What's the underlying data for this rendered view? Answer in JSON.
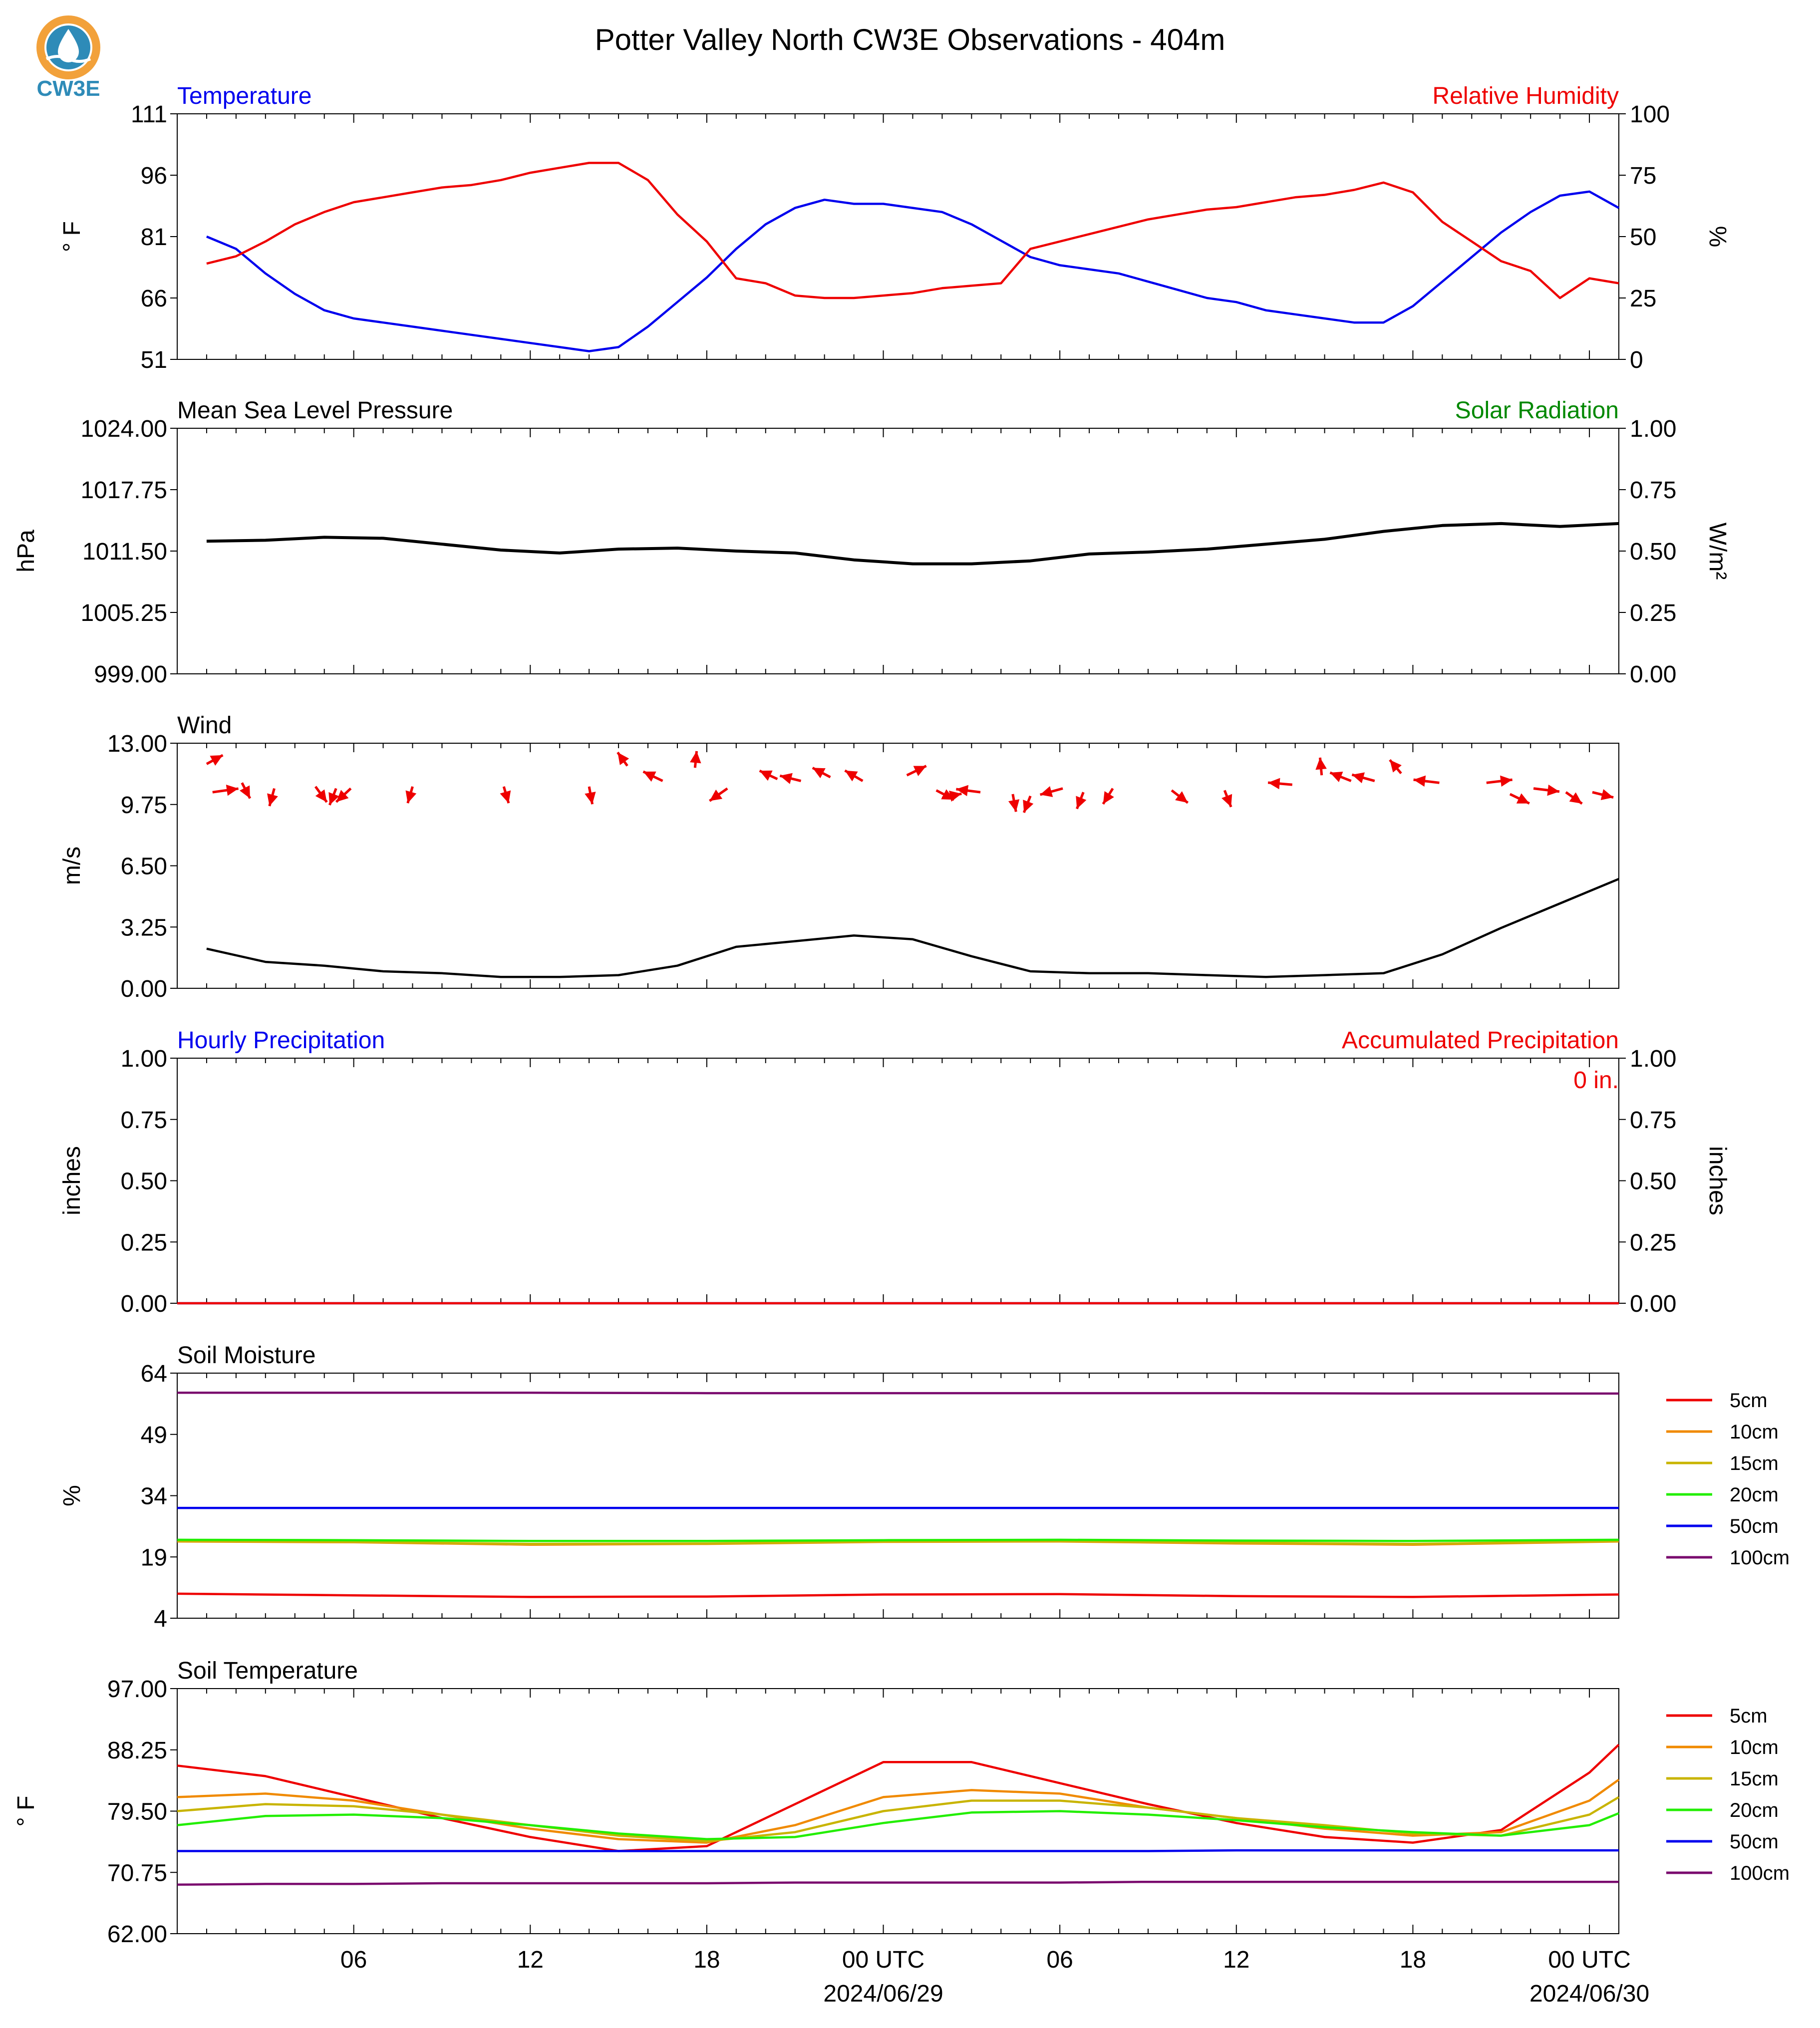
{
  "figure": {
    "title": "Potter Valley North CW3E Observations - 404m",
    "logo_text": "CW3E",
    "colors": {
      "blue": "#0000ee",
      "red": "#ee0000",
      "green": "#008800",
      "black": "#000000",
      "logo": "#2e8bb8",
      "logo_orange": "#f2a13a"
    }
  },
  "time_axis": {
    "tick_labels": [
      "06",
      "12",
      "18",
      "00 UTC",
      "06",
      "12",
      "18",
      "00 UTC"
    ],
    "date_labels": [
      "2024/06/29",
      "2024/06/30"
    ]
  },
  "chart_data": [
    {
      "type": "line",
      "name": "temperature_rh",
      "left_title": "Temperature",
      "right_title": "Relative Humidity",
      "ylabel": "° F",
      "ylabel_right": "%",
      "ylim": [
        51,
        111
      ],
      "yticks": [
        "51",
        "66",
        "81",
        "96",
        "111"
      ],
      "ylim_right": [
        0,
        100
      ],
      "yticks_right": [
        "0",
        "25",
        "50",
        "75",
        "100"
      ],
      "x_hours": [
        1,
        2,
        3,
        4,
        5,
        6,
        7,
        8,
        9,
        10,
        11,
        12,
        13,
        14,
        15,
        16,
        17,
        18,
        19,
        20,
        21,
        22,
        23,
        24,
        25,
        26,
        27,
        28,
        29,
        30,
        31,
        32,
        33,
        34,
        35,
        36,
        37,
        38,
        39,
        40,
        41,
        42,
        43,
        44,
        45,
        46,
        47,
        48,
        49
      ],
      "series": [
        {
          "name": "Temperature",
          "axis": "left",
          "color": "#0000ee",
          "values": [
            81,
            78,
            72,
            67,
            63,
            61,
            60,
            59,
            58,
            57,
            56,
            55,
            54,
            53,
            54,
            59,
            65,
            71,
            78,
            84,
            88,
            90,
            89,
            89,
            88,
            87,
            84,
            80,
            76,
            74,
            73,
            72,
            70,
            68,
            66,
            65,
            63,
            62,
            61,
            60,
            60,
            64,
            70,
            76,
            82,
            87,
            91,
            92,
            88
          ]
        },
        {
          "name": "Relative Humidity",
          "axis": "right",
          "color": "#ee0000",
          "values": [
            39,
            42,
            48,
            55,
            60,
            64,
            66,
            68,
            70,
            71,
            73,
            76,
            78,
            80,
            80,
            73,
            59,
            48,
            33,
            31,
            26,
            25,
            25,
            26,
            27,
            29,
            30,
            31,
            45,
            48,
            51,
            54,
            57,
            59,
            61,
            62,
            64,
            66,
            67,
            69,
            72,
            68,
            56,
            48,
            40,
            36,
            25,
            33,
            31
          ]
        }
      ]
    },
    {
      "type": "line",
      "name": "pressure",
      "left_title": "Mean Sea Level Pressure",
      "right_title": "Solar Radiation",
      "ylabel": "hPa",
      "ylabel_right": "W/m²",
      "ylim": [
        999.0,
        1024.0
      ],
      "yticks": [
        "999.00",
        "1005.25",
        "1011.50",
        "1017.75",
        "1024.00"
      ],
      "ylim_right": [
        0,
        1
      ],
      "yticks_right": [
        "0.00",
        "0.25",
        "0.50",
        "0.75",
        "1.00"
      ],
      "x_hours": [
        1,
        3,
        5,
        7,
        9,
        11,
        13,
        15,
        17,
        19,
        21,
        23,
        25,
        27,
        29,
        31,
        33,
        35,
        37,
        39,
        41,
        43,
        45,
        47,
        49
      ],
      "series": [
        {
          "name": "Mean Sea Level Pressure",
          "axis": "left",
          "color": "#000000",
          "values": [
            1012.5,
            1012.6,
            1012.9,
            1012.8,
            1012.2,
            1011.6,
            1011.3,
            1011.7,
            1011.8,
            1011.5,
            1011.3,
            1010.6,
            1010.2,
            1010.2,
            1010.5,
            1011.2,
            1011.4,
            1011.7,
            1012.2,
            1012.7,
            1013.5,
            1014.1,
            1014.3,
            1014.0,
            1014.3
          ]
        }
      ]
    },
    {
      "type": "line",
      "name": "wind",
      "left_title": "Wind",
      "ylabel": "m/s",
      "ylim": [
        0,
        13
      ],
      "yticks": [
        "0.00",
        "3.25",
        "6.50",
        "9.75",
        "13.00"
      ],
      "x_hours": [
        1,
        3,
        5,
        7,
        9,
        11,
        13,
        15,
        17,
        19,
        21,
        23,
        25,
        27,
        29,
        31,
        33,
        35,
        37,
        39,
        41,
        43,
        45,
        47,
        49
      ],
      "series": [
        {
          "name": "Wind Speed",
          "axis": "left",
          "color": "#000000",
          "values": [
            2.1,
            1.4,
            1.2,
            0.9,
            0.8,
            0.6,
            0.6,
            0.7,
            1.2,
            2.2,
            2.5,
            2.8,
            2.6,
            1.7,
            0.9,
            0.8,
            0.8,
            0.7,
            0.6,
            0.7,
            0.8,
            1.8,
            3.2,
            4.5,
            5.8
          ]
        }
      ],
      "arrows": [
        {
          "x": 1.0,
          "y": 11.9,
          "dx": 1.0,
          "dy": 0.85
        },
        {
          "x": 1.2,
          "y": 10.4,
          "dx": 1.6,
          "dy": 0.35
        },
        {
          "x": 2.2,
          "y": 10.9,
          "dx": 0.5,
          "dy": -1.5
        },
        {
          "x": 3.3,
          "y": 10.6,
          "dx": -0.3,
          "dy": -1.7
        },
        {
          "x": 4.7,
          "y": 10.7,
          "dx": 0.7,
          "dy": -1.5
        },
        {
          "x": 5.4,
          "y": 10.6,
          "dx": -0.4,
          "dy": -1.6
        },
        {
          "x": 5.9,
          "y": 10.6,
          "dx": -0.9,
          "dy": -1.3
        },
        {
          "x": 8.0,
          "y": 10.7,
          "dx": -0.3,
          "dy": -1.6
        },
        {
          "x": 11.1,
          "y": 10.7,
          "dx": 0.3,
          "dy": -1.6
        },
        {
          "x": 14.0,
          "y": 10.7,
          "dx": 0.2,
          "dy": -1.7
        },
        {
          "x": 15.3,
          "y": 11.8,
          "dx": -0.6,
          "dy": 1.3
        },
        {
          "x": 16.5,
          "y": 11.0,
          "dx": -1.2,
          "dy": 0.9
        },
        {
          "x": 17.6,
          "y": 11.7,
          "dx": 0.1,
          "dy": 1.6
        },
        {
          "x": 18.7,
          "y": 10.6,
          "dx": -1.1,
          "dy": -1.2
        },
        {
          "x": 20.4,
          "y": 11.1,
          "dx": -1.1,
          "dy": 0.8
        },
        {
          "x": 21.2,
          "y": 11.0,
          "dx": -1.3,
          "dy": 0.5
        },
        {
          "x": 22.2,
          "y": 11.2,
          "dx": -1.1,
          "dy": 0.9
        },
        {
          "x": 23.3,
          "y": 11.0,
          "dx": -1.1,
          "dy": 1.0
        },
        {
          "x": 24.8,
          "y": 11.3,
          "dx": 1.2,
          "dy": 0.9
        },
        {
          "x": 25.8,
          "y": 10.5,
          "dx": 1.1,
          "dy": -0.9
        },
        {
          "x": 26.0,
          "y": 10.1,
          "dx": 1.2,
          "dy": 0.4
        },
        {
          "x": 27.3,
          "y": 10.4,
          "dx": -1.5,
          "dy": 0.3
        },
        {
          "x": 28.4,
          "y": 10.3,
          "dx": 0.2,
          "dy": -1.7
        },
        {
          "x": 29.0,
          "y": 10.2,
          "dx": -0.4,
          "dy": -1.6
        },
        {
          "x": 30.1,
          "y": 10.6,
          "dx": -1.4,
          "dy": -0.6
        },
        {
          "x": 30.8,
          "y": 10.4,
          "dx": -0.4,
          "dy": -1.6
        },
        {
          "x": 31.8,
          "y": 10.6,
          "dx": -0.6,
          "dy": -1.5
        },
        {
          "x": 33.8,
          "y": 10.5,
          "dx": 1.0,
          "dy": -1.2
        },
        {
          "x": 35.6,
          "y": 10.5,
          "dx": 0.4,
          "dy": -1.6
        },
        {
          "x": 37.9,
          "y": 10.8,
          "dx": -1.5,
          "dy": 0.2
        },
        {
          "x": 38.9,
          "y": 11.3,
          "dx": -0.1,
          "dy": 1.7
        },
        {
          "x": 39.9,
          "y": 11.0,
          "dx": -1.3,
          "dy": 0.8
        },
        {
          "x": 40.7,
          "y": 11.0,
          "dx": -1.4,
          "dy": 0.6
        },
        {
          "x": 41.6,
          "y": 11.4,
          "dx": -0.7,
          "dy": 1.3
        },
        {
          "x": 42.9,
          "y": 10.9,
          "dx": -1.6,
          "dy": 0.3
        },
        {
          "x": 44.5,
          "y": 10.9,
          "dx": 1.6,
          "dy": 0.3
        },
        {
          "x": 45.3,
          "y": 10.3,
          "dx": 1.2,
          "dy": -0.9
        },
        {
          "x": 46.1,
          "y": 10.6,
          "dx": 1.6,
          "dy": -0.3
        },
        {
          "x": 47.2,
          "y": 10.4,
          "dx": 1.0,
          "dy": -1.1
        },
        {
          "x": 48.1,
          "y": 10.4,
          "dx": 1.3,
          "dy": -0.5
        }
      ]
    },
    {
      "type": "line",
      "name": "precip",
      "left_title": "Hourly Precipitation",
      "right_title": "Accumulated Precipitation",
      "annotation": "0 in.",
      "ylabel": "inches",
      "ylabel_right": "inches",
      "ylim": [
        0,
        1
      ],
      "yticks": [
        "0.00",
        "0.25",
        "0.50",
        "0.75",
        "1.00"
      ],
      "ylim_right": [
        0,
        1
      ],
      "yticks_right": [
        "0.00",
        "0.25",
        "0.50",
        "0.75",
        "1.00"
      ],
      "x_hours": [
        0,
        49
      ],
      "series": [
        {
          "name": "Hourly Precipitation",
          "axis": "left",
          "color": "#0000ee",
          "values": [
            0,
            0
          ]
        },
        {
          "name": "Accumulated Precipitation",
          "axis": "right",
          "color": "#ee0000",
          "values": [
            0,
            0
          ]
        }
      ]
    },
    {
      "type": "line",
      "name": "soil_moisture",
      "left_title": "Soil Moisture",
      "ylabel": "%",
      "ylim": [
        4,
        64
      ],
      "yticks": [
        "4",
        "19",
        "34",
        "49",
        "64"
      ],
      "x_hours": [
        0,
        6,
        12,
        18,
        24,
        30,
        36,
        42,
        49
      ],
      "legend": [
        "5cm",
        "10cm",
        "15cm",
        "20cm",
        "50cm",
        "100cm"
      ],
      "series": [
        {
          "name": "5cm",
          "color": "#ee0000",
          "values": [
            10.0,
            9.6,
            9.2,
            9.3,
            9.8,
            9.9,
            9.4,
            9.2,
            9.8
          ]
        },
        {
          "name": "10cm",
          "color": "#f08a00",
          "values": [
            22.8,
            22.6,
            22.0,
            22.2,
            22.7,
            22.8,
            22.3,
            22.0,
            22.8
          ]
        },
        {
          "name": "15cm",
          "color": "#c8b400",
          "values": [
            22.9,
            22.7,
            22.2,
            22.3,
            22.8,
            22.9,
            22.5,
            22.2,
            22.9
          ]
        },
        {
          "name": "20cm",
          "color": "#22ee00",
          "values": [
            23.2,
            23.1,
            22.9,
            22.9,
            23.1,
            23.2,
            23.0,
            22.9,
            23.2
          ]
        },
        {
          "name": "50cm",
          "color": "#0000ee",
          "values": [
            31.0,
            31.0,
            31.0,
            31.0,
            31.0,
            31.0,
            31.0,
            31.0,
            31.0
          ]
        },
        {
          "name": "100cm",
          "color": "#7a0a6e",
          "values": [
            59.2,
            59.2,
            59.2,
            59.1,
            59.1,
            59.1,
            59.1,
            59.0,
            59.0
          ]
        }
      ]
    },
    {
      "type": "line",
      "name": "soil_temperature",
      "left_title": "Soil Temperature",
      "ylabel": "° F",
      "ylim": [
        62,
        97
      ],
      "yticks": [
        "62.00",
        "70.75",
        "79.50",
        "88.25",
        "97.00"
      ],
      "x_hours": [
        0,
        3,
        6,
        9,
        12,
        15,
        18,
        21,
        24,
        27,
        30,
        33,
        36,
        39,
        42,
        45,
        48,
        49
      ],
      "legend": [
        "5cm",
        "10cm",
        "15cm",
        "20cm",
        "50cm",
        "100cm"
      ],
      "series": [
        {
          "name": "5cm",
          "color": "#ee0000",
          "values": [
            86.0,
            84.5,
            81.5,
            78.5,
            75.8,
            73.8,
            74.5,
            80.5,
            86.5,
            86.5,
            83.5,
            80.5,
            77.8,
            75.8,
            75.0,
            76.8,
            85.0,
            89.0
          ]
        },
        {
          "name": "10cm",
          "color": "#f08a00",
          "values": [
            81.5,
            82.0,
            81.0,
            79.0,
            77.0,
            75.5,
            75.0,
            77.5,
            81.5,
            82.5,
            82.0,
            80.0,
            78.5,
            77.0,
            76.0,
            76.5,
            81.0,
            84.0
          ]
        },
        {
          "name": "15cm",
          "color": "#c8b400",
          "values": [
            79.5,
            80.5,
            80.2,
            79.0,
            77.5,
            76.0,
            75.2,
            76.5,
            79.5,
            81.0,
            81.0,
            80.0,
            78.5,
            77.5,
            76.3,
            76.0,
            79.0,
            81.5
          ]
        },
        {
          "name": "20cm",
          "color": "#22ee00",
          "values": [
            77.5,
            78.8,
            79.0,
            78.5,
            77.5,
            76.3,
            75.5,
            75.8,
            77.8,
            79.3,
            79.5,
            79.0,
            78.2,
            77.2,
            76.5,
            76.0,
            77.5,
            79.2
          ]
        },
        {
          "name": "50cm",
          "color": "#0000ee",
          "values": [
            73.8,
            73.8,
            73.8,
            73.8,
            73.8,
            73.8,
            73.8,
            73.8,
            73.8,
            73.8,
            73.8,
            73.8,
            73.9,
            73.9,
            73.9,
            73.9,
            73.9,
            73.9
          ]
        },
        {
          "name": "100cm",
          "color": "#7a0a6e",
          "values": [
            69.0,
            69.1,
            69.1,
            69.2,
            69.2,
            69.2,
            69.2,
            69.3,
            69.3,
            69.3,
            69.3,
            69.4,
            69.4,
            69.4,
            69.4,
            69.4,
            69.4,
            69.4
          ]
        }
      ]
    }
  ]
}
